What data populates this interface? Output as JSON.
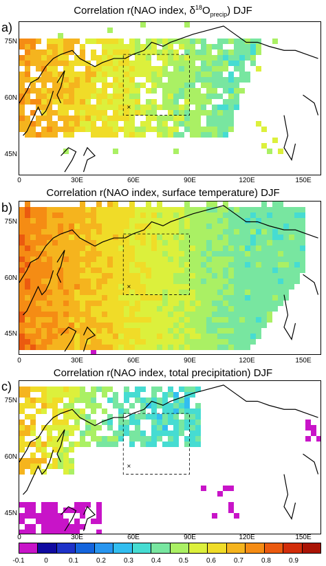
{
  "panels": [
    {
      "letter": "a)",
      "title_prefix": "Correlation r(NAO index, δ",
      "title_sup": "18",
      "title_main": "O",
      "title_sub": "precip",
      "title_suffix": ")  DJF",
      "variable": "d18O_precip"
    },
    {
      "letter": "b)",
      "title": "Correlation r(NAO index, surface temperature)  DJF",
      "variable": "surface_temperature"
    },
    {
      "letter": "c)",
      "title": "Correlation r(NAO index, total precipitation)  DJF",
      "variable": "total_precipitation"
    }
  ],
  "lat_labels": [
    "75N",
    "60N",
    "45N"
  ],
  "lon_labels": [
    "0",
    "30E",
    "60E",
    "90E",
    "120E",
    "150E"
  ],
  "colorbar": {
    "labels": [
      "-0.1",
      "0",
      "0.1",
      "0.2",
      "0.3",
      "0.4",
      "0.5",
      "0.6",
      "0.7",
      "0.8",
      "0.9"
    ],
    "colors": [
      "#c814c8",
      "#100aa0",
      "#1e32c8",
      "#1464dc",
      "#2896f0",
      "#32bef0",
      "#46dcd2",
      "#78e6a0",
      "#aaf064",
      "#dcf03c",
      "#f0dc28",
      "#f5b41e",
      "#f58c14",
      "#eb5a0f",
      "#d22d0a",
      "#aa1405"
    ]
  },
  "map_meta": {
    "lat_range": [
      40,
      78
    ],
    "lon_range": [
      0,
      160
    ],
    "box_region": {
      "lon": [
        55,
        90
      ],
      "lat": [
        55,
        70
      ]
    },
    "marker_site": {
      "lon": 58,
      "lat": 57
    }
  }
}
